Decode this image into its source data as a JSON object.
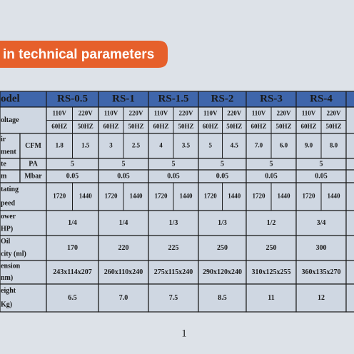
{
  "header": {
    "title": "in technical parameters"
  },
  "table": {
    "head": {
      "label": [
        "odel"
      ],
      "cells": [
        "RS-0.5",
        "RS-1",
        "RS-1.5",
        "RS-2",
        "RS-3",
        "RS-4"
      ]
    },
    "rows": [
      {
        "label": [
          "oltage"
        ],
        "cells": [
          [
            "110V",
            "220V",
            "60HZ",
            "50HZ"
          ],
          [
            "110V",
            "220V",
            "60HZ",
            "50HZ"
          ],
          [
            "110V",
            "220V",
            "60HZ",
            "50HZ"
          ],
          [
            "110V",
            "220V",
            "60HZ",
            "50HZ"
          ],
          [
            "110V",
            "220V",
            "60HZ",
            "50HZ"
          ],
          [
            "110V",
            "220V",
            "60HZ",
            "50HZ"
          ]
        ]
      },
      {
        "label": [
          "ir",
          "ment"
        ],
        "unit": "CFM",
        "cells": [
          [
            "1.8",
            "1.5"
          ],
          [
            "3",
            "2.5"
          ],
          [
            "4",
            "3.5"
          ],
          [
            "5",
            "4.5"
          ],
          [
            "7.0",
            "6.0"
          ],
          [
            "9.0",
            "8.0"
          ]
        ]
      },
      {
        "label": [
          "te"
        ],
        "unit": "PA",
        "cells": [
          "5",
          "5",
          "5",
          "5",
          "5",
          "5"
        ]
      },
      {
        "label": [
          "m"
        ],
        "unit": "Mbar",
        "cells": [
          "0.05",
          "0.05",
          "0.05",
          "0.05",
          "0.05",
          "0.05"
        ]
      },
      {
        "label": [
          "tating",
          "peed"
        ],
        "cells": [
          [
            "1720",
            "1440"
          ],
          [
            "1720",
            "1440"
          ],
          [
            "1720",
            "1440"
          ],
          [
            "1720",
            "1440"
          ],
          [
            "1720",
            "1440"
          ],
          [
            "1720",
            "1440"
          ]
        ]
      },
      {
        "label": [
          "ower",
          "HP)"
        ],
        "cells": [
          "1/4",
          "1/4",
          "1/3",
          "1/3",
          "1/2",
          "3/4"
        ]
      },
      {
        "label": [
          "Oil",
          "city (ml)"
        ],
        "cells": [
          "170",
          "220",
          "225",
          "250",
          "250",
          "300"
        ]
      },
      {
        "label": [
          "ension",
          "nm)"
        ],
        "cells": [
          "243x114x207",
          "260x110x240",
          "275x115x240",
          "290x120x240",
          "310x125x255",
          "360x135x270"
        ]
      },
      {
        "label": [
          "eight",
          "Kg)"
        ],
        "cells": [
          "6.5",
          "7.0",
          "7.5",
          "8.5",
          "11",
          "12"
        ]
      }
    ]
  },
  "footer": {
    "page": "1"
  }
}
